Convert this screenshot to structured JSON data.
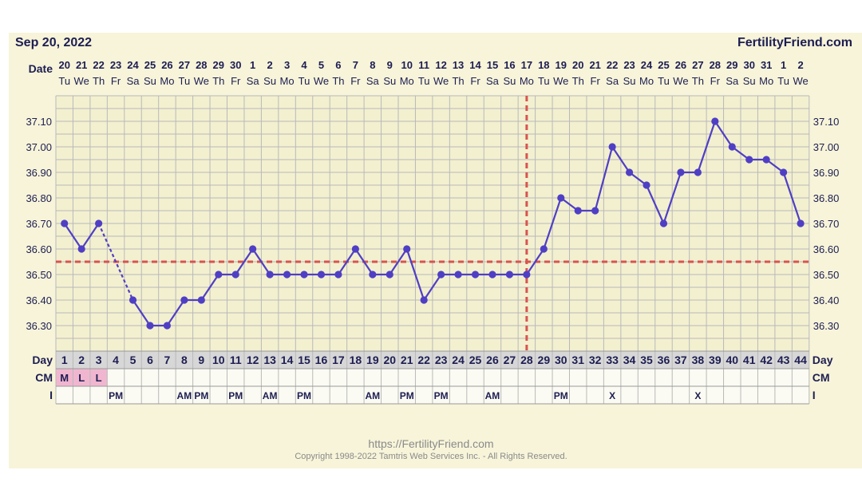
{
  "header": {
    "date": "Sep 20, 2022",
    "brand": "FertilityFriend.com"
  },
  "labels": {
    "date_row": "Date",
    "day_row": "Day",
    "cm_row": "CM",
    "i_row": "I"
  },
  "footer": {
    "url": "https://FertilityFriend.com",
    "copyright": "Copyright 1998-2022 Tamtris Web Services Inc. - All Rights Reserved."
  },
  "colors": {
    "line": "#4f3fc4",
    "coverline": "#d9534f",
    "grid": "#b9b9b9",
    "plot_bg": "#f3f0d0",
    "cm_highlight": "#f1b6cf",
    "text": "#1d1d52"
  },
  "chart_data": {
    "type": "line",
    "title": "",
    "ylim": [
      36.2,
      37.2
    ],
    "yticks": [
      "37.10",
      "37.00",
      "36.90",
      "36.80",
      "36.70",
      "36.60",
      "36.50",
      "36.40",
      "36.30"
    ],
    "dates": [
      "20",
      "21",
      "22",
      "23",
      "24",
      "25",
      "26",
      "27",
      "28",
      "29",
      "30",
      "1",
      "2",
      "3",
      "4",
      "5",
      "6",
      "7",
      "8",
      "9",
      "10",
      "11",
      "12",
      "13",
      "14",
      "15",
      "16",
      "17",
      "18",
      "19",
      "20",
      "21",
      "22",
      "23",
      "24",
      "25",
      "26",
      "27",
      "28",
      "29",
      "30",
      "31",
      "1",
      "2"
    ],
    "weekdays": [
      "Tu",
      "We",
      "Th",
      "Fr",
      "Sa",
      "Su",
      "Mo",
      "Tu",
      "We",
      "Th",
      "Fr",
      "Sa",
      "Su",
      "Mo",
      "Tu",
      "We",
      "Th",
      "Fr",
      "Sa",
      "Su",
      "Mo",
      "Tu",
      "We",
      "Th",
      "Fr",
      "Sa",
      "Su",
      "Mo",
      "Tu",
      "We",
      "Th",
      "Fr",
      "Sa",
      "Su",
      "Mo",
      "Tu",
      "We",
      "Th",
      "Fr",
      "Sa",
      "Su",
      "Mo",
      "Tu",
      "We"
    ],
    "days": [
      "1",
      "2",
      "3",
      "4",
      "5",
      "6",
      "7",
      "8",
      "9",
      "10",
      "11",
      "12",
      "13",
      "14",
      "15",
      "16",
      "17",
      "18",
      "19",
      "20",
      "21",
      "22",
      "23",
      "24",
      "25",
      "26",
      "27",
      "28",
      "29",
      "30",
      "31",
      "32",
      "33",
      "34",
      "35",
      "36",
      "37",
      "38",
      "39",
      "40",
      "41",
      "42",
      "43",
      "44"
    ],
    "temperatures": [
      36.7,
      36.6,
      36.7,
      null,
      36.4,
      36.3,
      36.3,
      36.4,
      36.4,
      36.5,
      36.5,
      36.6,
      36.5,
      36.5,
      36.5,
      36.5,
      36.5,
      36.6,
      36.5,
      36.5,
      36.6,
      36.4,
      36.5,
      36.5,
      36.5,
      36.5,
      36.5,
      36.5,
      36.6,
      36.8,
      36.75,
      36.75,
      37.0,
      36.9,
      36.85,
      36.7,
      36.9,
      36.9,
      37.1,
      37.0,
      36.95,
      36.95,
      36.9,
      36.7
    ],
    "coverline": 36.55,
    "ovulation_day": 28,
    "cm": [
      "M",
      "L",
      "L",
      "",
      "",
      "",
      "",
      "",
      "",
      "",
      "",
      "",
      "",
      "",
      "",
      "",
      "",
      "",
      "",
      "",
      "",
      "",
      "",
      "",
      "",
      "",
      "",
      "",
      "",
      "",
      "",
      "",
      "",
      "",
      "",
      "",
      "",
      "",
      "",
      "",
      "",
      "",
      "",
      ""
    ],
    "intercourse": [
      "",
      "",
      "",
      "PM",
      "",
      "",
      "",
      "AM",
      "PM",
      "",
      "PM",
      "",
      "AM",
      "",
      "PM",
      "",
      "",
      "",
      "AM",
      "",
      "PM",
      "",
      "PM",
      "",
      "",
      "AM",
      "",
      "",
      "",
      "PM",
      "",
      "",
      "X",
      "",
      "",
      "",
      "",
      "X",
      "",
      "",
      "",
      "",
      "",
      ""
    ]
  }
}
